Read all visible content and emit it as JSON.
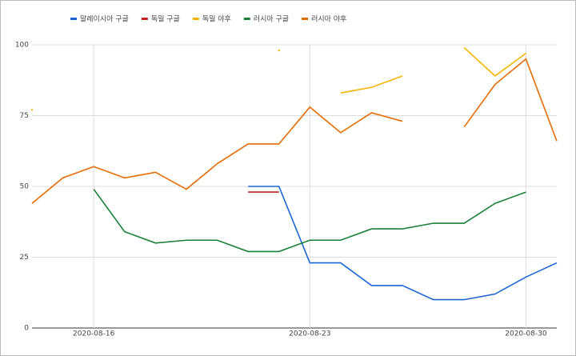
{
  "chart_data": {
    "type": "line",
    "categories": [
      null,
      null,
      "2020-08-16",
      null,
      null,
      null,
      null,
      null,
      null,
      "2020-08-23",
      null,
      null,
      null,
      null,
      null,
      null,
      "2020-08-30",
      null
    ],
    "series": [
      {
        "name": "말레이시아 구글",
        "color": "#1a66d4",
        "values": [
          null,
          null,
          null,
          null,
          null,
          null,
          null,
          50,
          50,
          23,
          23,
          15,
          15,
          10,
          10,
          12,
          18,
          23
        ]
      },
      {
        "name": "독일 구글",
        "color": "#c5221f",
        "values": [
          null,
          null,
          null,
          null,
          null,
          null,
          null,
          48,
          48,
          null,
          null,
          null,
          null,
          null,
          null,
          null,
          null,
          null
        ]
      },
      {
        "name": "독일 야후",
        "color": "#f4b400",
        "values": [
          77,
          null,
          null,
          null,
          null,
          null,
          null,
          null,
          98,
          null,
          83,
          85,
          89,
          null,
          99,
          89,
          97,
          null
        ]
      },
      {
        "name": "러시아 구글",
        "color": "#188038",
        "values": [
          null,
          null,
          49,
          34,
          30,
          31,
          31,
          27,
          27,
          31,
          31,
          35,
          35,
          37,
          37,
          44,
          48,
          null
        ]
      },
      {
        "name": "러시아 야후",
        "color": "#e66c00",
        "values": [
          44,
          53,
          57,
          53,
          55,
          49,
          58,
          65,
          65,
          78,
          69,
          76,
          73,
          null,
          71,
          86,
          95,
          66
        ]
      }
    ],
    "ylim": [
      0,
      100
    ],
    "yticks": [
      0,
      25,
      50,
      75,
      100
    ],
    "grid": true,
    "legend": "top"
  }
}
